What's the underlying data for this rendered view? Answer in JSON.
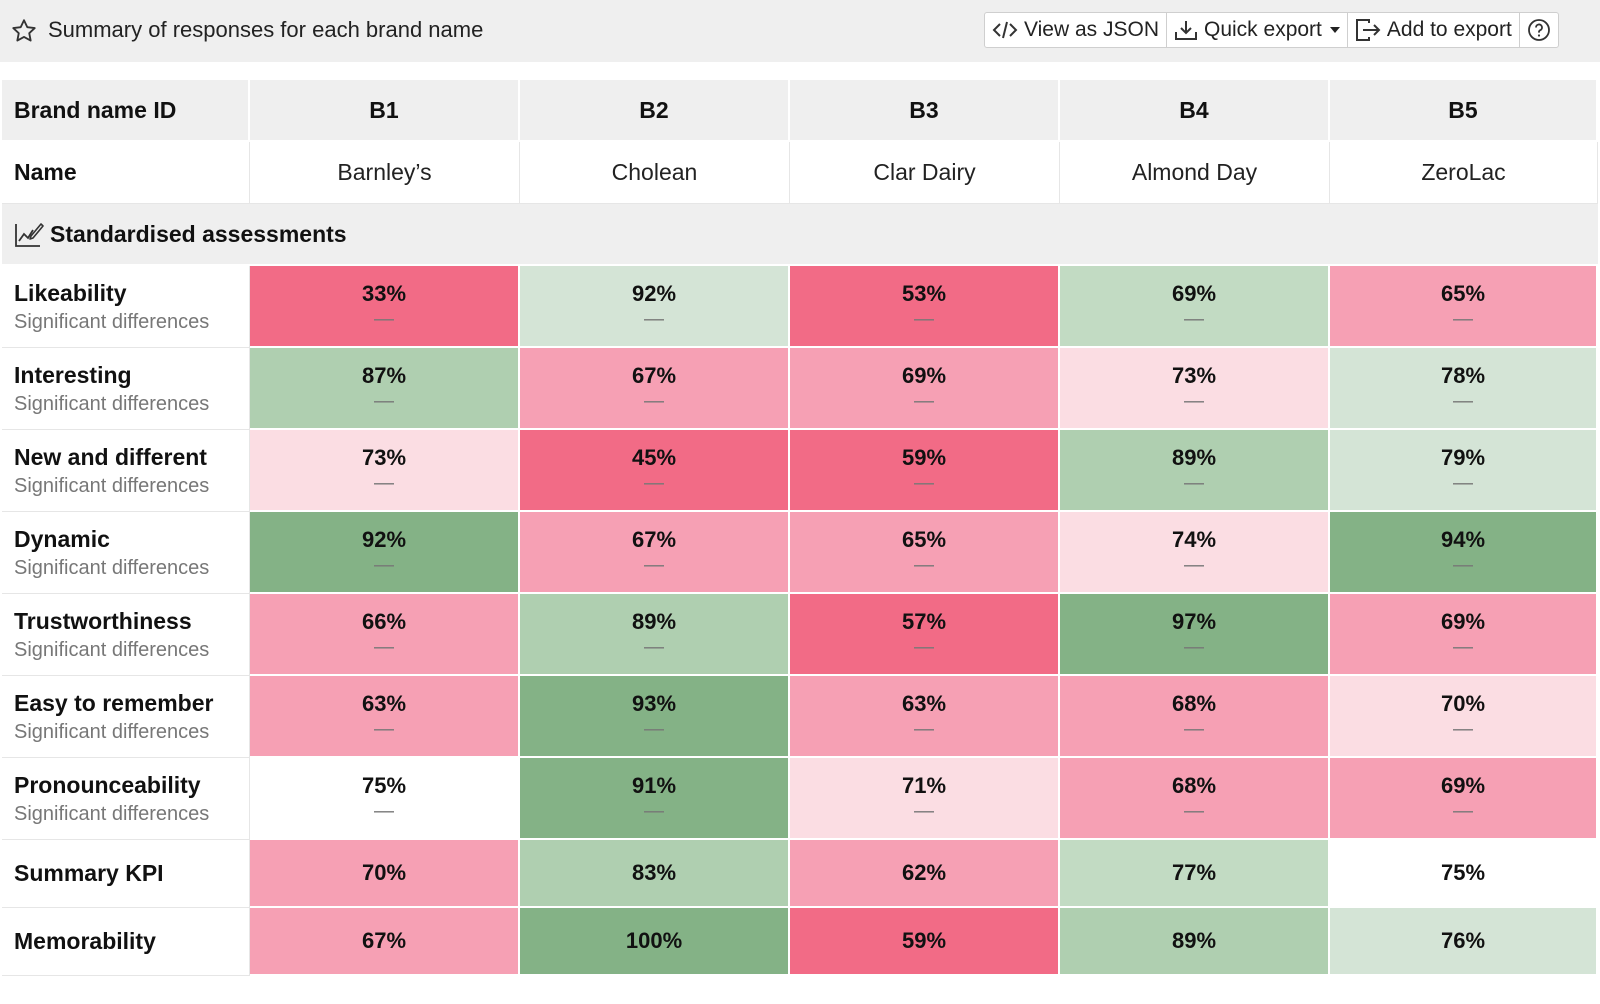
{
  "header": {
    "title": "Summary of responses for each brand name",
    "view_json_label": "View as JSON",
    "quick_export_label": "Quick export",
    "add_export_label": "Add to export"
  },
  "table": {
    "id_header": "Brand name ID",
    "name_label": "Name",
    "brand_ids": [
      "B1",
      "B2",
      "B3",
      "B4",
      "B5"
    ],
    "brand_names": [
      "Barnley’s",
      "Cholean",
      "Clar Dairy",
      "Almond Day",
      "ZeroLac"
    ],
    "section_title": "Standardised assessments",
    "sub_label": "Significant differences",
    "dash": "—",
    "rows": [
      {
        "label": "Likeability",
        "values": [
          "33%",
          "92%",
          "53%",
          "69%",
          "65%"
        ],
        "colors": [
          "#f26b86",
          "#d4e4d6",
          "#f26b86",
          "#c2dbc3",
          "#f6a0b4"
        ]
      },
      {
        "label": "Interesting",
        "values": [
          "87%",
          "67%",
          "69%",
          "73%",
          "78%"
        ],
        "colors": [
          "#afcfb0",
          "#f6a0b4",
          "#f6a0b4",
          "#fbdde3",
          "#d4e4d6"
        ]
      },
      {
        "label": "New and different",
        "values": [
          "73%",
          "45%",
          "59%",
          "89%",
          "79%"
        ],
        "colors": [
          "#fbdde3",
          "#f26b86",
          "#f26b86",
          "#afcfb0",
          "#d4e4d6"
        ]
      },
      {
        "label": "Dynamic",
        "values": [
          "92%",
          "67%",
          "65%",
          "74%",
          "94%"
        ],
        "colors": [
          "#84b286",
          "#f6a0b4",
          "#f6a0b4",
          "#fbdde3",
          "#84b286"
        ]
      },
      {
        "label": "Trustworthiness",
        "values": [
          "66%",
          "89%",
          "57%",
          "97%",
          "69%"
        ],
        "colors": [
          "#f6a0b4",
          "#afcfb0",
          "#f26b86",
          "#84b286",
          "#f6a0b4"
        ]
      },
      {
        "label": "Easy to remember",
        "values": [
          "63%",
          "93%",
          "63%",
          "68%",
          "70%"
        ],
        "colors": [
          "#f6a0b4",
          "#84b286",
          "#f6a0b4",
          "#f6a0b4",
          "#fbdde3"
        ]
      },
      {
        "label": "Pronounceability",
        "values": [
          "75%",
          "91%",
          "71%",
          "68%",
          "69%"
        ],
        "colors": [
          "#ffffff",
          "#84b286",
          "#fbdde3",
          "#f6a0b4",
          "#f6a0b4"
        ]
      }
    ],
    "kpi_rows": [
      {
        "label": "Summary KPI",
        "values": [
          "70%",
          "83%",
          "62%",
          "77%",
          "75%"
        ],
        "colors": [
          "#f6a0b4",
          "#afcfb0",
          "#f6a0b4",
          "#c2dbc3",
          "#ffffff"
        ]
      },
      {
        "label": "Memorability",
        "values": [
          "67%",
          "100%",
          "59%",
          "89%",
          "76%"
        ],
        "colors": [
          "#f6a0b4",
          "#84b286",
          "#f26b86",
          "#afcfb0",
          "#d4e4d6"
        ]
      }
    ]
  }
}
